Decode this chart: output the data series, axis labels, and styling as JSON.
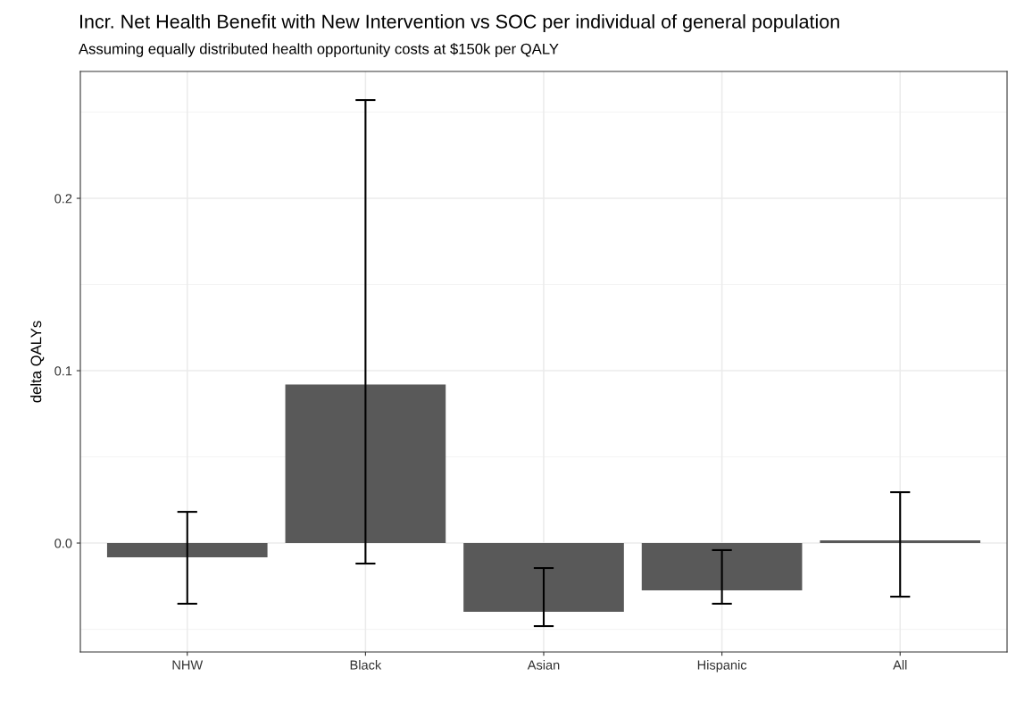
{
  "chart_data": {
    "type": "bar",
    "title": "Incr. Net Health Benefit with New Intervention vs SOC per individual of general population",
    "subtitle": "Assuming equally distributed health opportunity costs at $150k per QALY",
    "ylabel": "delta QALYs",
    "categories": [
      "NHW",
      "Black",
      "Asian",
      "Hispanic",
      "All"
    ],
    "values": [
      -0.0083,
      0.092,
      -0.0399,
      -0.0275,
      0.0016
    ],
    "errors": [
      [
        -0.0352,
        0.0181
      ],
      [
        -0.0119,
        0.257
      ],
      [
        -0.0482,
        -0.0145
      ],
      [
        -0.0352,
        -0.0041
      ],
      [
        -0.0311,
        0.0295
      ]
    ],
    "color": "#595959",
    "ylim": [
      -0.0632,
      0.2736
    ],
    "yticks": [
      {
        "value": 0,
        "label": "0.0"
      },
      0.1,
      0.2
    ],
    "grid": true
  }
}
